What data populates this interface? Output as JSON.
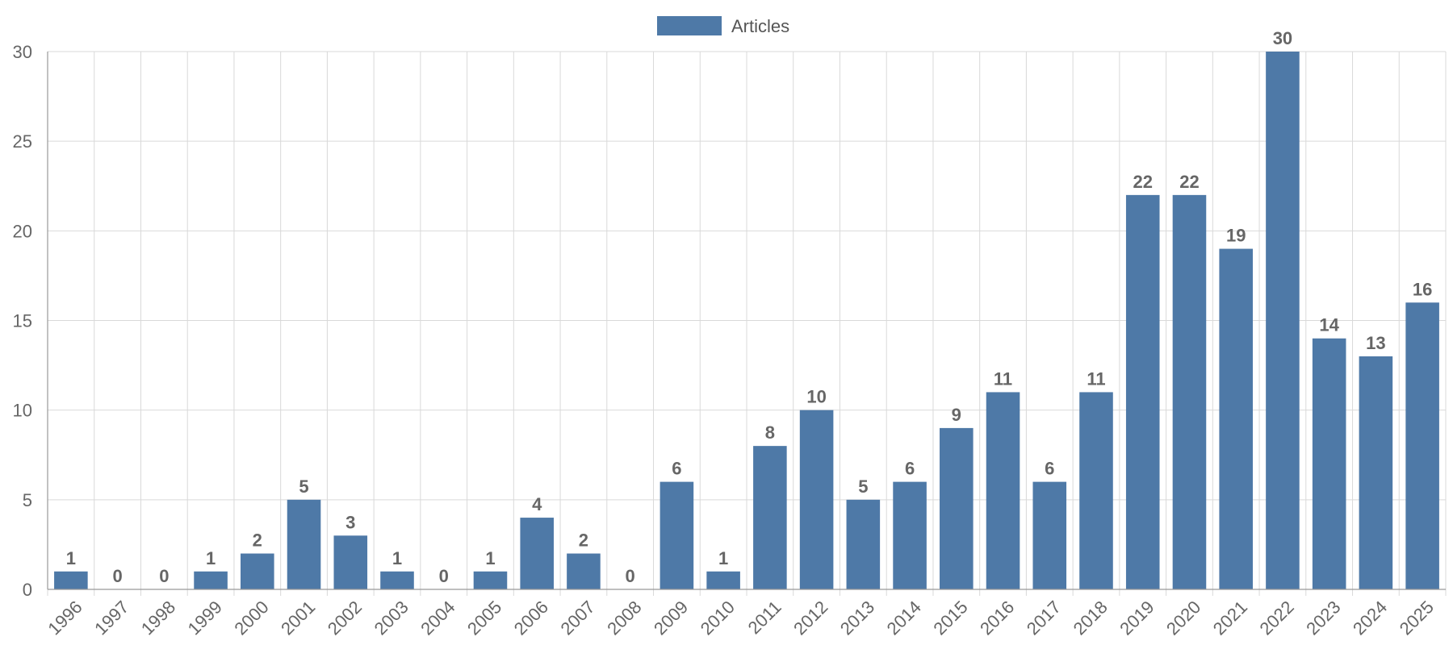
{
  "chart_data": {
    "type": "bar",
    "categories": [
      "1996",
      "1997",
      "1998",
      "1999",
      "2000",
      "2001",
      "2002",
      "2003",
      "2004",
      "2005",
      "2006",
      "2007",
      "2008",
      "2009",
      "2010",
      "2011",
      "2012",
      "2013",
      "2014",
      "2015",
      "2016",
      "2017",
      "2018",
      "2019",
      "2020",
      "2021",
      "2022",
      "2023",
      "2024",
      "2025"
    ],
    "series": [
      {
        "name": "Articles",
        "color": "#4e79a7",
        "values": [
          1,
          0,
          0,
          1,
          2,
          5,
          3,
          1,
          0,
          1,
          4,
          2,
          0,
          6,
          1,
          8,
          10,
          5,
          6,
          9,
          11,
          6,
          11,
          22,
          22,
          19,
          30,
          14,
          13,
          16
        ]
      }
    ],
    "ylim": [
      0,
      30
    ],
    "yticks": [
      0,
      5,
      10,
      15,
      20,
      25,
      30
    ],
    "grid": true,
    "legend_position": "top-center",
    "data_labels": true,
    "xtick_rotation": -45
  }
}
